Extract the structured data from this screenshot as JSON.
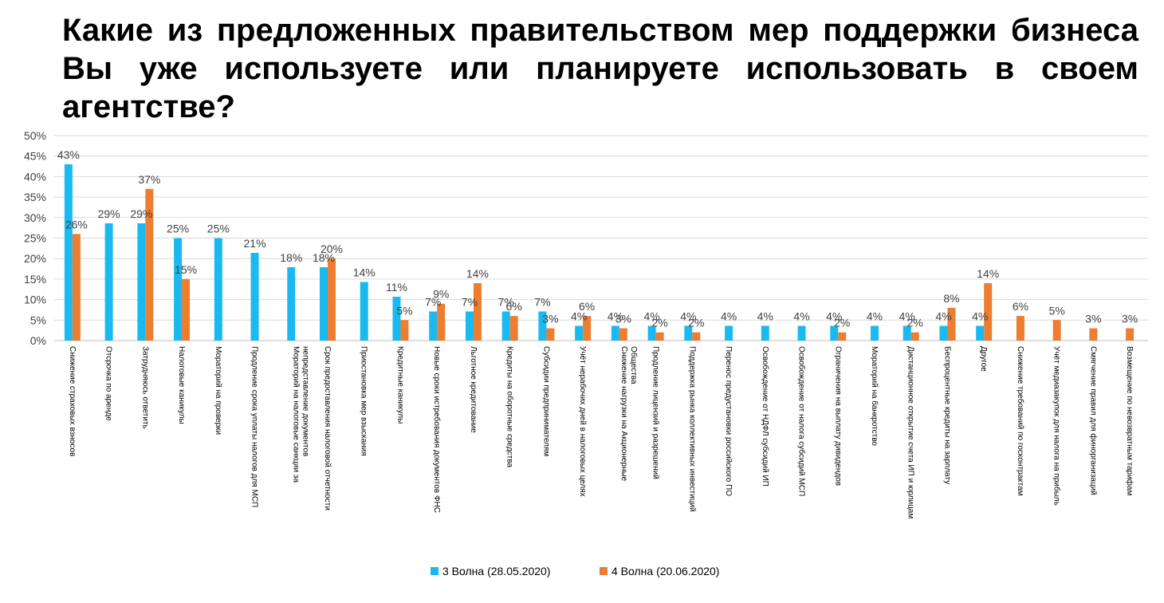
{
  "title": "Какие из предложенных правительством мер поддержки бизнеса Вы уже используете или планируете использовать в своем агентстве?",
  "chart_data": {
    "type": "bar",
    "ylim": [
      0,
      50
    ],
    "yticks": [
      "0%",
      "5%",
      "10%",
      "15%",
      "20%",
      "25%",
      "30%",
      "35%",
      "40%",
      "45%",
      "50%"
    ],
    "grid": true,
    "legend_position": "bottom",
    "categories": [
      [
        "Снижение страховых взносов"
      ],
      [
        "Отсрочка по аренде"
      ],
      [
        "Затрудняюсь ответить"
      ],
      [
        "Налоговые каникулы"
      ],
      [
        "Мораторий на проверки"
      ],
      [
        "Продление срока уплаты налогов для МСП"
      ],
      [
        "Мораторий на налоговые санкции за",
        "непредставление документов"
      ],
      [
        "Срок предоставления налоговой отчетности"
      ],
      [
        "Приостановка мер взыскания"
      ],
      [
        "Кредитные каникулы"
      ],
      [
        "Новые сроки истребования документов ФНС"
      ],
      [
        "Льготное кредитование"
      ],
      [
        "Кредиты на оборотные средства"
      ],
      [
        "Субсидии предпринимателям"
      ],
      [
        "Учёт нерабочих дней в налоговых целях"
      ],
      [
        "Снижение нагрузки на Акционерные",
        "Общества"
      ],
      [
        "Продление лицензий и разрешений"
      ],
      [
        "Поддержка рынка коллективных инвестиций"
      ],
      [
        "Перенос предустановки российского ПО"
      ],
      [
        "Освобождение от НДФЛ субсидий ИП"
      ],
      [
        "Освобождение от налога субсидий МСП"
      ],
      [
        "Ограничения на выплату дивидендов"
      ],
      [
        "Мораторий на банкротство"
      ],
      [
        "Дистанционное открытие счета ИП и юрлицам"
      ],
      [
        "Беспроцентные кредиты на зарплату"
      ],
      [
        "Другое"
      ],
      [
        "Снижение требований по госконтрактам"
      ],
      [
        "Учёт медиазакупок для налога на прибыль"
      ],
      [
        "Смягчение правил для финорганизаций"
      ],
      [
        "Возмещение по невозвратным тарифам"
      ]
    ],
    "series": [
      {
        "name": "3 Волна (28.05.2020)",
        "color": "#1ABAF0",
        "values": [
          43,
          28.6,
          28.6,
          25,
          25,
          21.4,
          17.9,
          17.9,
          14.3,
          10.7,
          7.1,
          7.1,
          7.1,
          7.1,
          3.6,
          3.6,
          3.6,
          3.6,
          3.6,
          3.6,
          3.6,
          3.6,
          3.6,
          3.6,
          3.6,
          3.6,
          null,
          null,
          null,
          null
        ],
        "labels": [
          "43%",
          "29%",
          "29%",
          "25%",
          "25%",
          "21%",
          "18%",
          "18%",
          "14%",
          "11%",
          "7%",
          "7%",
          "7%",
          "7%",
          "4%",
          "4%",
          "4%",
          "4%",
          "4%",
          "4%",
          "4%",
          "4%",
          "4%",
          "4%",
          "4%",
          "4%",
          "",
          "",
          "",
          ""
        ]
      },
      {
        "name": "4 Волна (20.06.2020)",
        "color": "#ED7D31",
        "values": [
          26,
          null,
          37,
          15,
          null,
          null,
          null,
          20,
          null,
          5,
          9,
          14,
          6,
          3,
          6,
          3,
          2,
          2,
          null,
          null,
          null,
          2,
          null,
          2,
          8,
          14,
          6,
          5,
          3,
          3
        ],
        "labels": [
          "26%",
          "",
          "37%",
          "15%",
          "",
          "",
          "",
          "20%",
          "",
          "5%",
          "9%",
          "14%",
          "6%",
          "3%",
          "6%",
          "3%",
          "2%",
          "2%",
          "",
          "",
          "",
          "2%",
          "",
          "2%",
          "8%",
          "14%",
          "6%",
          "5%",
          "3%",
          "3%"
        ]
      }
    ]
  }
}
